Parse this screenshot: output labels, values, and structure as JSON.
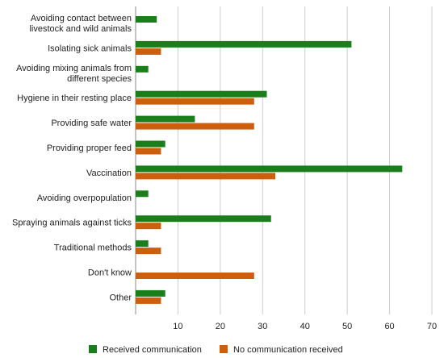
{
  "chart_data": {
    "type": "bar",
    "orientation": "horizontal",
    "categories": [
      [
        "Avoiding contact between",
        "livestock and wild animals"
      ],
      [
        "Isolating sick animals"
      ],
      [
        "Avoiding mixing animals from",
        "different species"
      ],
      [
        "Hygiene in their resting place"
      ],
      [
        "Providing safe water"
      ],
      [
        "Providing proper feed"
      ],
      [
        "Vaccination"
      ],
      [
        "Avoiding overpopulation"
      ],
      [
        "Spraying animals against ticks"
      ],
      [
        "Traditional methods"
      ],
      [
        "Don't know"
      ],
      [
        "Other"
      ]
    ],
    "series": [
      {
        "name": "Received communication",
        "color": "#1a7f1a",
        "values": [
          5,
          51,
          3,
          31,
          14,
          7,
          63,
          3,
          32,
          3,
          0,
          7
        ]
      },
      {
        "name": "No communication received",
        "color": "#cc5f0e",
        "values": [
          0,
          6,
          0,
          28,
          28,
          6,
          33,
          0,
          6,
          6,
          28,
          6
        ]
      }
    ],
    "xticks": [
      "10",
      "20",
      "30",
      "40",
      "50",
      "60",
      "70"
    ],
    "xlim": [
      0,
      70
    ],
    "grid": true,
    "legend_position": "bottom"
  }
}
